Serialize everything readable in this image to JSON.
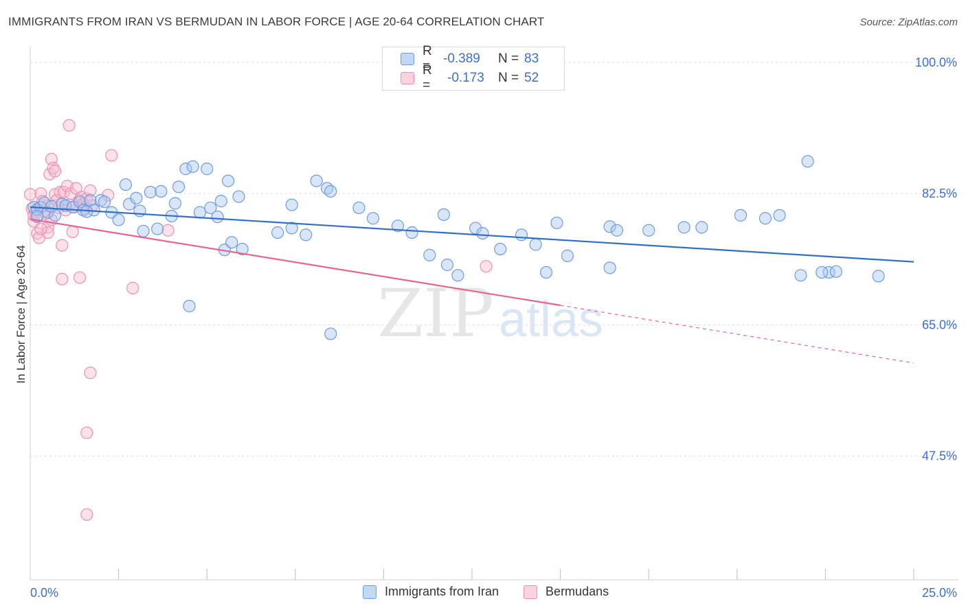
{
  "title": "IMMIGRANTS FROM IRAN VS BERMUDAN IN LABOR FORCE | AGE 20-64 CORRELATION CHART",
  "source": "Source: ZipAtlas.com",
  "watermark": {
    "zip": "ZIP",
    "atlas": "atlas"
  },
  "legend": {
    "rows": [
      {
        "r_label": "R =",
        "r_value": "-0.389",
        "n_label": "N =",
        "n_value": "83"
      },
      {
        "r_label": "R =",
        "r_value": "-0.173",
        "n_label": "N =",
        "n_value": "52"
      }
    ]
  },
  "colors": {
    "iran_fill": "#aac8f0",
    "iran_stroke": "#6d9be0",
    "iran_line": "#2f6fcc",
    "bermudan_fill": "#f7bfd0",
    "bermudan_stroke": "#ee8fae",
    "bermudan_line": "#e8638f",
    "axis_text": "#3b6fd0",
    "grid": "#dcdcdc"
  },
  "chart_data": {
    "type": "scatter",
    "title": "IMMIGRANTS FROM IRAN VS BERMUDAN IN LABOR FORCE | AGE 20-64 CORRELATION CHART",
    "xlabel": "",
    "ylabel": "In Labor Force | Age 20-64",
    "xlim": [
      0,
      25
    ],
    "ylim": [
      31,
      101
    ],
    "x_tick_labels": [
      "0.0%",
      "25.0%"
    ],
    "y_ticks": [
      47.5,
      65.0,
      82.5,
      100.0
    ],
    "y_tick_labels": [
      "47.5%",
      "65.0%",
      "82.5%",
      "100.0%"
    ],
    "series": [
      {
        "name": "Immigrants from Iran",
        "r": -0.389,
        "n": 83,
        "trend": {
          "x0": 0,
          "y0": 80.7,
          "x1": 25,
          "y1": 73.4
        },
        "points": [
          [
            0.1,
            80.7
          ],
          [
            0.2,
            80.4
          ],
          [
            0.3,
            80.7
          ],
          [
            0.4,
            81.3
          ],
          [
            0.5,
            80.0
          ],
          [
            0.7,
            79.6
          ],
          [
            0.9,
            81.1
          ],
          [
            1.0,
            80.9
          ],
          [
            1.2,
            80.7
          ],
          [
            1.4,
            81.4
          ],
          [
            1.5,
            80.3
          ],
          [
            1.7,
            81.6
          ],
          [
            1.8,
            80.3
          ],
          [
            2.0,
            81.6
          ],
          [
            2.1,
            81.4
          ],
          [
            2.3,
            80.0
          ],
          [
            2.5,
            79.0
          ],
          [
            2.7,
            83.7
          ],
          [
            2.8,
            81.1
          ],
          [
            3.0,
            81.9
          ],
          [
            3.1,
            80.2
          ],
          [
            3.2,
            77.5
          ],
          [
            3.4,
            82.7
          ],
          [
            3.6,
            77.8
          ],
          [
            3.7,
            82.8
          ],
          [
            4.0,
            79.5
          ],
          [
            4.1,
            81.2
          ],
          [
            4.2,
            83.4
          ],
          [
            4.4,
            85.8
          ],
          [
            4.6,
            86.1
          ],
          [
            4.5,
            67.5
          ],
          [
            4.8,
            80.0
          ],
          [
            5.0,
            85.8
          ],
          [
            5.1,
            80.6
          ],
          [
            5.3,
            79.4
          ],
          [
            5.4,
            81.5
          ],
          [
            5.5,
            75.0
          ],
          [
            5.6,
            84.2
          ],
          [
            5.7,
            76.0
          ],
          [
            5.9,
            82.1
          ],
          [
            6.0,
            75.1
          ],
          [
            7.0,
            77.3
          ],
          [
            7.4,
            81.0
          ],
          [
            7.4,
            77.9
          ],
          [
            7.8,
            77.0
          ],
          [
            8.1,
            84.2
          ],
          [
            8.4,
            83.2
          ],
          [
            8.5,
            82.8
          ],
          [
            8.5,
            63.8
          ],
          [
            9.3,
            80.6
          ],
          [
            9.7,
            79.2
          ],
          [
            10.4,
            78.2
          ],
          [
            10.8,
            77.3
          ],
          [
            11.3,
            74.3
          ],
          [
            11.7,
            79.7
          ],
          [
            11.8,
            73.0
          ],
          [
            12.1,
            71.6
          ],
          [
            12.6,
            77.9
          ],
          [
            12.8,
            77.2
          ],
          [
            13.3,
            75.1
          ],
          [
            13.9,
            77.0
          ],
          [
            14.3,
            75.7
          ],
          [
            14.6,
            72.0
          ],
          [
            14.9,
            78.6
          ],
          [
            15.2,
            74.2
          ],
          [
            16.4,
            72.6
          ],
          [
            16.4,
            78.1
          ],
          [
            16.6,
            77.6
          ],
          [
            17.5,
            77.6
          ],
          [
            18.5,
            78.0
          ],
          [
            22.0,
            86.8
          ],
          [
            21.2,
            79.6
          ],
          [
            20.1,
            79.6
          ],
          [
            22.6,
            72.0
          ],
          [
            22.8,
            72.1
          ],
          [
            22.4,
            72.0
          ],
          [
            24.0,
            71.5
          ],
          [
            19.0,
            78.0
          ],
          [
            20.8,
            79.2
          ],
          [
            21.8,
            71.6
          ],
          [
            0.2,
            79.5
          ],
          [
            0.6,
            80.8
          ],
          [
            1.6,
            80.1
          ]
        ]
      },
      {
        "name": "Bermudans",
        "r": -0.173,
        "n": 52,
        "trend": {
          "x0": 0,
          "y0": 79.1,
          "x1": 15,
          "y1": 67.6
        },
        "trend_dashed": {
          "x0": 15,
          "y0": 67.6,
          "x1": 25,
          "y1": 59.9
        },
        "points": [
          [
            0.0,
            82.4
          ],
          [
            0.05,
            80.5
          ],
          [
            0.1,
            79.6
          ],
          [
            0.1,
            78.8
          ],
          [
            0.15,
            80.1
          ],
          [
            0.2,
            79.4
          ],
          [
            0.2,
            77.2
          ],
          [
            0.25,
            76.6
          ],
          [
            0.3,
            82.5
          ],
          [
            0.35,
            81.5
          ],
          [
            0.4,
            80.2
          ],
          [
            0.45,
            79.8
          ],
          [
            0.5,
            80.9
          ],
          [
            0.5,
            78.0
          ],
          [
            0.5,
            77.3
          ],
          [
            0.55,
            85.1
          ],
          [
            0.6,
            87.1
          ],
          [
            0.65,
            85.9
          ],
          [
            0.7,
            85.5
          ],
          [
            0.7,
            82.4
          ],
          [
            0.75,
            81.6
          ],
          [
            0.8,
            80.6
          ],
          [
            0.85,
            82.7
          ],
          [
            0.9,
            75.6
          ],
          [
            0.9,
            71.1
          ],
          [
            0.95,
            82.7
          ],
          [
            1.0,
            80.3
          ],
          [
            1.05,
            83.5
          ],
          [
            1.1,
            91.6
          ],
          [
            1.15,
            82.5
          ],
          [
            1.2,
            77.4
          ],
          [
            1.25,
            80.7
          ],
          [
            1.3,
            83.2
          ],
          [
            1.4,
            81.6
          ],
          [
            1.4,
            71.3
          ],
          [
            1.45,
            82.0
          ],
          [
            1.5,
            81.1
          ],
          [
            1.55,
            80.5
          ],
          [
            1.6,
            81.8
          ],
          [
            1.7,
            82.9
          ],
          [
            1.75,
            80.9
          ],
          [
            2.2,
            82.3
          ],
          [
            2.3,
            87.6
          ],
          [
            2.9,
            69.9
          ],
          [
            3.9,
            77.6
          ],
          [
            12.9,
            72.8
          ],
          [
            1.7,
            58.6
          ],
          [
            1.6,
            50.6
          ],
          [
            1.6,
            39.7
          ],
          [
            0.3,
            77.8
          ],
          [
            0.6,
            79.0
          ],
          [
            1.1,
            81.0
          ]
        ]
      }
    ]
  },
  "bottom_legend": [
    {
      "label": "Immigrants from Iran"
    },
    {
      "label": "Bermudans"
    }
  ]
}
